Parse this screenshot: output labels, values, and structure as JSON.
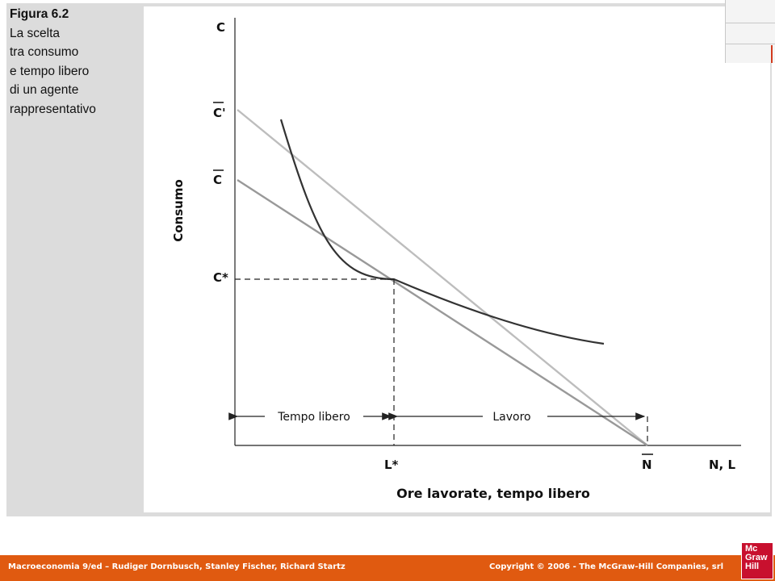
{
  "caption": {
    "title": "Figura 6.2",
    "lines": [
      "La scelta",
      "tra consumo",
      "e tempo libero",
      "di un agente",
      "rappresentativo"
    ]
  },
  "diagram": {
    "y_axis_top_label": "C",
    "c_prime_label": "C'",
    "c_bar_label": "C",
    "c_star_label": "C*",
    "y_axis_title": "Consumo",
    "x_axis_title": "Ore lavorate, tempo libero",
    "l_star_label": "L*",
    "n_bar_label": "N",
    "x_axis_end_label": "N, L",
    "tempo_libero_label": "Tempo libero",
    "lavoro_label": "Lavoro",
    "colors": {
      "indifference_curve": "#333333",
      "budget_line_light": "#bdbdbd",
      "budget_line_dark": "#999999",
      "axes": "#222222"
    }
  },
  "footer": {
    "left": "Macroeconomia 9/ed – Rudiger Dornbusch, Stanley Fischer, Richard Startz",
    "right": "Copyright © 2006 - The McGraw-Hill Companies, srl"
  },
  "logo": {
    "lines": [
      "Mc",
      "Graw",
      "Hill"
    ]
  }
}
